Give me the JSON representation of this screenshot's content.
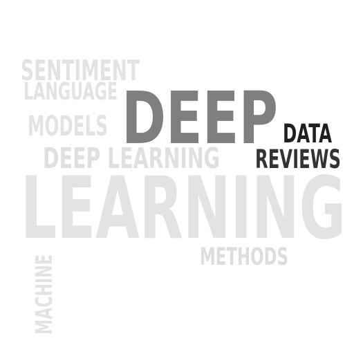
{
  "words": [
    {
      "text": "SENTIMENT",
      "color": "#e3e3e3"
    },
    {
      "text": "LANGUAGE",
      "color": "#e3e3e3"
    },
    {
      "text": "DEEP",
      "color": "#7f7f7f"
    },
    {
      "text": "MODELS",
      "color": "#e3e3e3"
    },
    {
      "text": "DATA",
      "color": "#1f1f1f"
    },
    {
      "text": "REVIEWS",
      "color": "#333333"
    },
    {
      "text": "DEEP LEARNING",
      "color": "#e0e0e0"
    },
    {
      "text": "LEARNING",
      "color": "#e3e3e3"
    },
    {
      "text": "METHODS",
      "color": "#dddddd"
    },
    {
      "text": "MACHINE",
      "color": "#e3e3e3"
    }
  ]
}
